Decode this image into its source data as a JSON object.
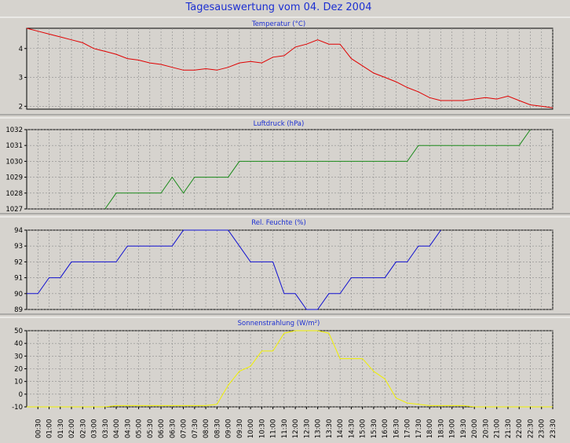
{
  "window": {
    "title": "Tagesauswertung vom 04. Dez 2004"
  },
  "colors": {
    "background": "#d6d3ce",
    "title": "#1c2fd2",
    "grid": "#8c8c8c"
  },
  "chart_data": [
    {
      "type": "line",
      "title": "Temperatur (°C)",
      "ylim": [
        1.9,
        4.7
      ],
      "yticks": [
        "2",
        "3",
        "4"
      ],
      "grid": true,
      "color": "#e00000",
      "x": [
        "00:00",
        "00:30",
        "01:00",
        "01:30",
        "02:00",
        "02:30",
        "03:00",
        "03:30",
        "04:00",
        "04:30",
        "05:00",
        "05:30",
        "06:00",
        "06:30",
        "07:00",
        "07:30",
        "08:00",
        "08:30",
        "09:00",
        "09:30",
        "10:00",
        "10:30",
        "11:00",
        "11:30",
        "12:00",
        "12:30",
        "13:00",
        "13:30",
        "14:00",
        "14:30",
        "15:00",
        "15:30",
        "16:00",
        "16:30",
        "17:00",
        "17:30",
        "18:00",
        "18:30",
        "19:00",
        "19:30",
        "20:00",
        "20:30",
        "21:00",
        "21:30",
        "22:00",
        "22:30",
        "23:00",
        "23:30"
      ],
      "values": [
        4.7,
        4.6,
        4.5,
        4.4,
        4.3,
        4.2,
        4.0,
        3.9,
        3.8,
        3.65,
        3.6,
        3.5,
        3.45,
        3.35,
        3.25,
        3.25,
        3.3,
        3.25,
        3.35,
        3.5,
        3.55,
        3.5,
        3.7,
        3.75,
        4.05,
        4.15,
        4.3,
        4.15,
        4.15,
        3.65,
        3.4,
        3.15,
        3.0,
        2.85,
        2.65,
        2.5,
        2.3,
        2.2,
        2.2,
        2.2,
        2.25,
        2.3,
        2.25,
        2.35,
        2.2,
        2.05,
        2.0,
        1.95
      ]
    },
    {
      "type": "line",
      "title": "Luftdruck (hPa)",
      "ylim": [
        1027,
        1032
      ],
      "yticks": [
        "1027",
        "1028",
        "1029",
        "1030",
        "1031",
        "1032"
      ],
      "grid": true,
      "color": "#1a8a1a",
      "x": [
        "03:30",
        "04:00",
        "04:30",
        "05:00",
        "05:30",
        "06:00",
        "06:30",
        "07:00",
        "07:30",
        "08:00",
        "08:30",
        "09:00",
        "09:30",
        "17:00",
        "17:30",
        "21:30",
        "22:00",
        "22:30"
      ],
      "values": [
        1027,
        1028,
        1028,
        1028,
        1028,
        1028,
        1029,
        1028,
        1029,
        1029,
        1029,
        1029,
        1030,
        1030,
        1031,
        1031,
        1031,
        1032
      ]
    },
    {
      "type": "line",
      "title": "Rel. Feuchte (%)",
      "ylim": [
        89,
        94
      ],
      "yticks": [
        "89",
        "90",
        "91",
        "92",
        "93",
        "94"
      ],
      "grid": true,
      "color": "#1010d0",
      "x": [
        "00:00",
        "00:30",
        "01:00",
        "01:30",
        "02:00",
        "02:30",
        "03:00",
        "03:30",
        "04:00",
        "04:30",
        "05:00",
        "05:30",
        "06:00",
        "06:30",
        "07:00",
        "07:30",
        "08:00",
        "08:30",
        "09:00",
        "09:30",
        "10:00",
        "10:30",
        "11:00",
        "11:30",
        "12:00",
        "12:30",
        "13:00",
        "13:30",
        "14:00",
        "14:30",
        "15:00",
        "15:30",
        "16:00",
        "16:30",
        "17:00",
        "17:30",
        "18:00",
        "18:30"
      ],
      "values": [
        90,
        90,
        91,
        91,
        92,
        92,
        92,
        92,
        92,
        93,
        93,
        93,
        93,
        93,
        94,
        94,
        94,
        94,
        94,
        93,
        92,
        92,
        92,
        90,
        90,
        89,
        89,
        90,
        90,
        91,
        91,
        91,
        91,
        92,
        92,
        93,
        93,
        94
      ]
    },
    {
      "type": "line",
      "title": "Sonnenstrahlung (W/m²)",
      "ylim": [
        -10,
        50
      ],
      "yticks": [
        "-10",
        "0",
        "10",
        "20",
        "30",
        "40",
        "50"
      ],
      "grid": true,
      "color": "#f0f000",
      "x": [
        "00:00",
        "00:30",
        "01:00",
        "01:30",
        "02:00",
        "02:30",
        "03:00",
        "03:30",
        "04:00",
        "04:30",
        "05:00",
        "05:30",
        "06:00",
        "06:30",
        "07:00",
        "07:30",
        "08:00",
        "08:30",
        "09:00",
        "09:30",
        "10:00",
        "10:30",
        "11:00",
        "11:30",
        "12:00",
        "12:30",
        "13:00",
        "13:30",
        "14:00",
        "14:30",
        "15:00",
        "15:30",
        "16:00",
        "16:30",
        "17:00",
        "17:30",
        "18:00",
        "18:30",
        "19:00",
        "19:30",
        "20:00",
        "20:30",
        "21:00",
        "21:30",
        "22:00",
        "22:30",
        "23:00",
        "23:30"
      ],
      "values": [
        -10,
        -10,
        -10,
        -10,
        -10,
        -10,
        -10,
        -10,
        -9,
        -9,
        -9,
        -9,
        -9,
        -9,
        -9,
        -9,
        -9,
        -8,
        7,
        18,
        22,
        34,
        34,
        48,
        50,
        50,
        50,
        48,
        28,
        28,
        28,
        18,
        12,
        -3,
        -7,
        -8,
        -9,
        -9,
        -9,
        -9,
        -10,
        -10,
        -10,
        -10,
        -10,
        -10,
        -10,
        -10
      ]
    }
  ],
  "x_axis": {
    "tick_labels": [
      "00:30",
      "01:00",
      "01:30",
      "02:00",
      "02:30",
      "03:00",
      "03:30",
      "04:00",
      "04:30",
      "05:00",
      "05:30",
      "06:00",
      "06:30",
      "07:00",
      "07:30",
      "08:00",
      "08:30",
      "09:00",
      "09:30",
      "10:00",
      "10:30",
      "11:00",
      "11:30",
      "12:00",
      "12:30",
      "13:00",
      "13:30",
      "14:00",
      "14:30",
      "15:00",
      "15:30",
      "16:00",
      "16:30",
      "17:00",
      "17:30",
      "18:00",
      "18:30",
      "19:00",
      "19:30",
      "20:00",
      "20:30",
      "21:00",
      "21:30",
      "22:00",
      "22:30",
      "23:00",
      "23:30"
    ]
  }
}
